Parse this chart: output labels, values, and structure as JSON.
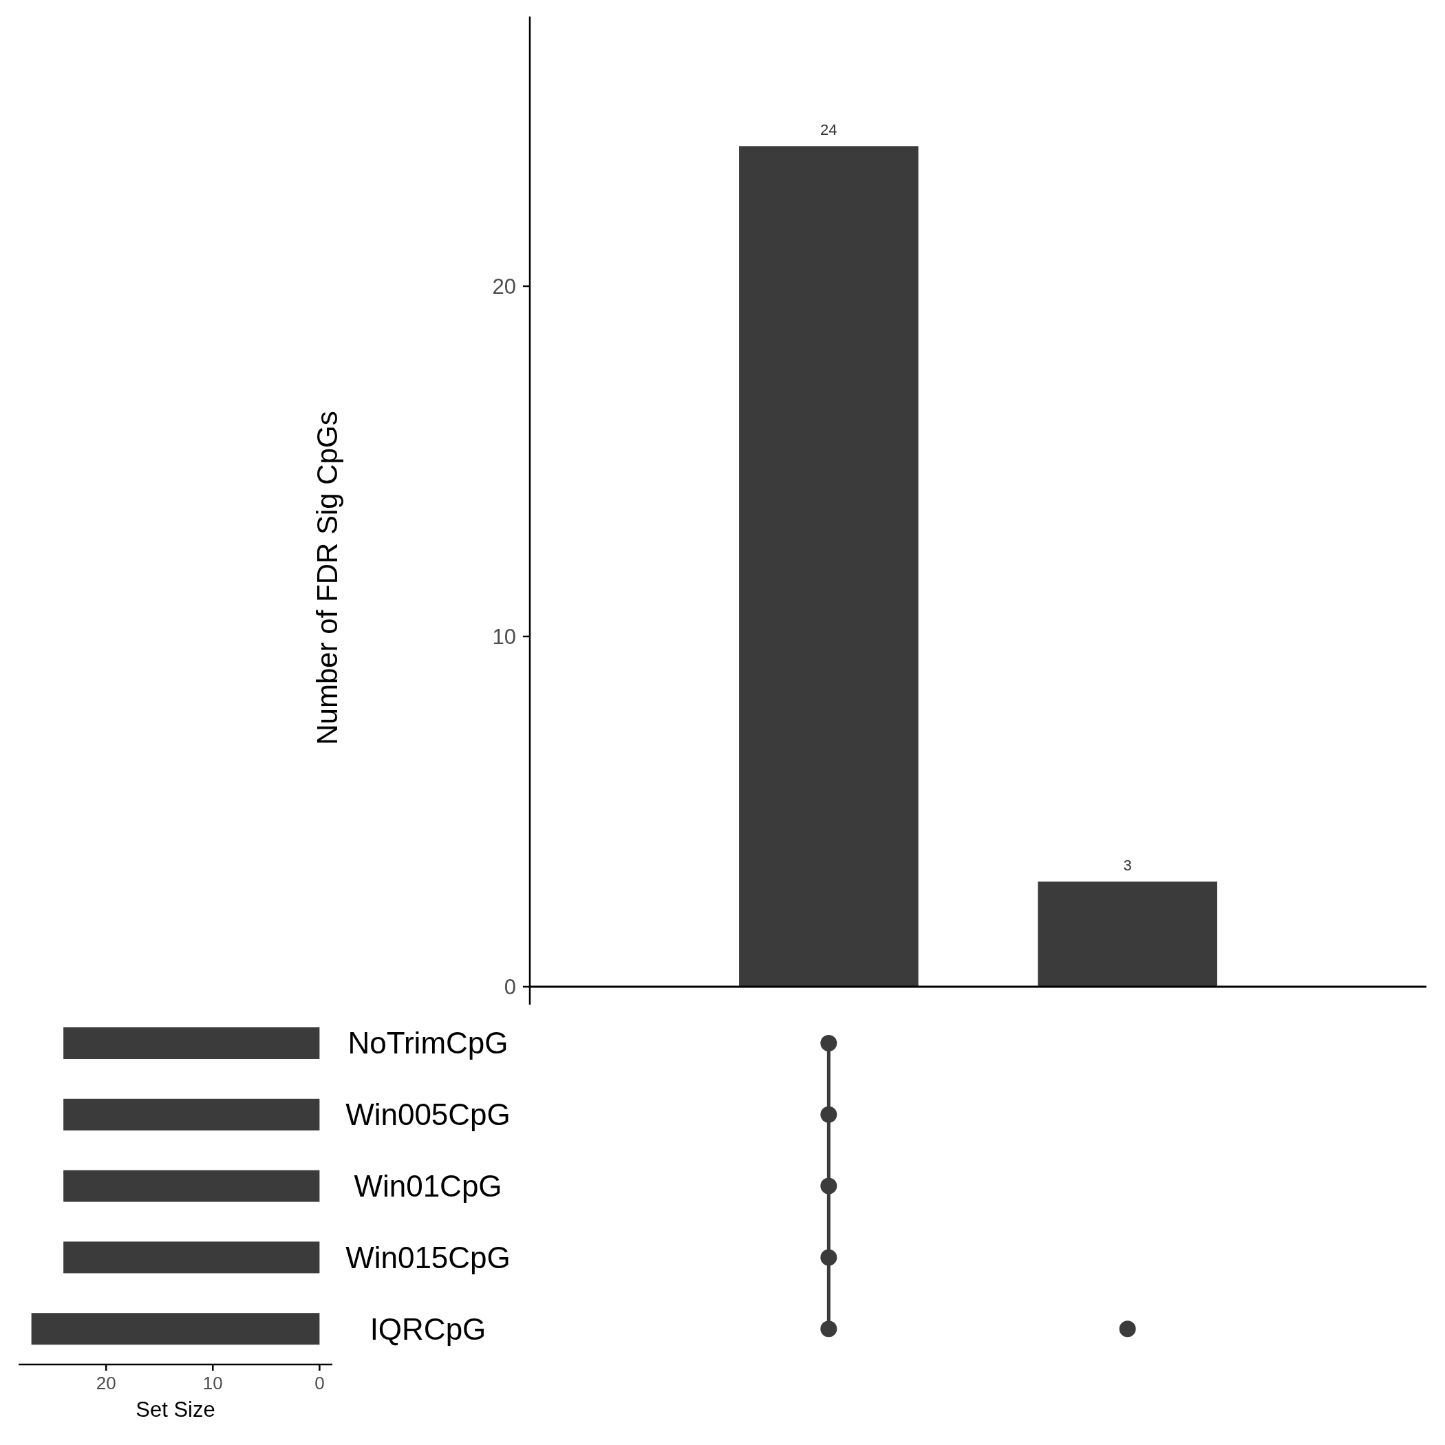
{
  "chart_data": [
    {
      "type": "bar",
      "categories": [
        null,
        null
      ],
      "values": [
        24,
        3
      ],
      "color": "#3b3b3b",
      "ylabel": "Number of FDR Sig CpGs",
      "ylim": [
        0,
        27.7
      ],
      "yticks": [
        0,
        10,
        20
      ],
      "data_labels": true,
      "grid": false
    },
    {
      "type": "bar",
      "orientation": "horizontal",
      "categories": [
        "NoTrimCpG",
        "Win005CpG",
        "Win01CpG",
        "Win015CpG",
        "IQRCpG"
      ],
      "values": [
        24,
        24,
        24,
        24,
        27
      ],
      "color": "#3b3b3b",
      "xlabel": "Set Size",
      "xlim": [
        28.2,
        -1.2
      ],
      "xticks": [
        20,
        10,
        0
      ],
      "grid": false
    }
  ]
}
